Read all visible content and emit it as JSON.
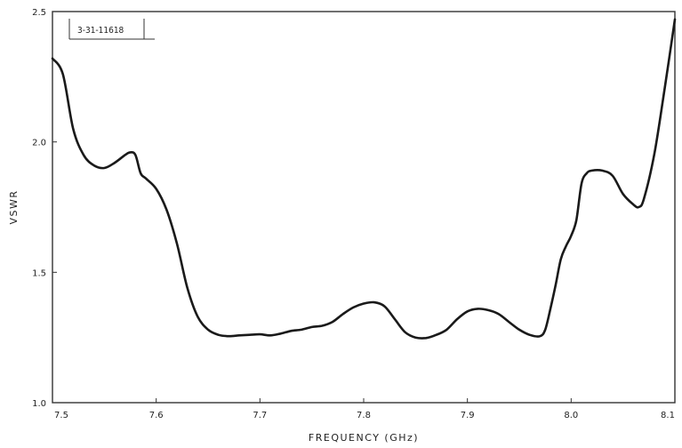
{
  "figure_id": "3-31-11618",
  "chart_data": {
    "type": "line",
    "title": "",
    "xlabel": "FREQUENCY (GHz)",
    "ylabel": "VSWR",
    "xlim": [
      7.5,
      8.1
    ],
    "ylim": [
      1.0,
      2.5
    ],
    "x_ticks": [
      "7.5",
      "7.6",
      "7.7",
      "7.8",
      "7.9",
      "8.0",
      "8.1"
    ],
    "y_ticks": [
      "1.0",
      "1.5",
      "2.0",
      "2.5"
    ],
    "grid": false,
    "legend": "none",
    "colors": {
      "line": "#1a1a1a",
      "frame": "#333333"
    },
    "series": [
      {
        "x": [
          7.5,
          7.51,
          7.52,
          7.53,
          7.54,
          7.55,
          7.56,
          7.57,
          7.575,
          7.58,
          7.585,
          7.59,
          7.6,
          7.61,
          7.62,
          7.63,
          7.64,
          7.65,
          7.66,
          7.67,
          7.68,
          7.69,
          7.7,
          7.71,
          7.72,
          7.73,
          7.74,
          7.75,
          7.76,
          7.77,
          7.78,
          7.79,
          7.8,
          7.81,
          7.82,
          7.83,
          7.84,
          7.85,
          7.86,
          7.87,
          7.88,
          7.89,
          7.9,
          7.91,
          7.92,
          7.93,
          7.94,
          7.95,
          7.96,
          7.97,
          7.975,
          7.98,
          7.985,
          7.99,
          7.995,
          8.0,
          8.005,
          8.01,
          8.015,
          8.02,
          8.03,
          8.04,
          8.05,
          8.06,
          8.065,
          8.07,
          8.08,
          8.09,
          8.1
        ],
        "y": [
          2.32,
          2.26,
          2.05,
          1.95,
          1.91,
          1.9,
          1.92,
          1.95,
          1.96,
          1.95,
          1.88,
          1.86,
          1.82,
          1.74,
          1.61,
          1.44,
          1.33,
          1.28,
          1.26,
          1.255,
          1.258,
          1.26,
          1.262,
          1.258,
          1.265,
          1.275,
          1.28,
          1.29,
          1.295,
          1.31,
          1.34,
          1.365,
          1.38,
          1.385,
          1.37,
          1.32,
          1.27,
          1.25,
          1.248,
          1.26,
          1.28,
          1.32,
          1.35,
          1.36,
          1.355,
          1.34,
          1.31,
          1.28,
          1.26,
          1.255,
          1.28,
          1.36,
          1.45,
          1.55,
          1.6,
          1.64,
          1.7,
          1.84,
          1.88,
          1.89,
          1.89,
          1.87,
          1.8,
          1.76,
          1.75,
          1.78,
          1.95,
          2.2,
          2.47
        ]
      }
    ]
  }
}
